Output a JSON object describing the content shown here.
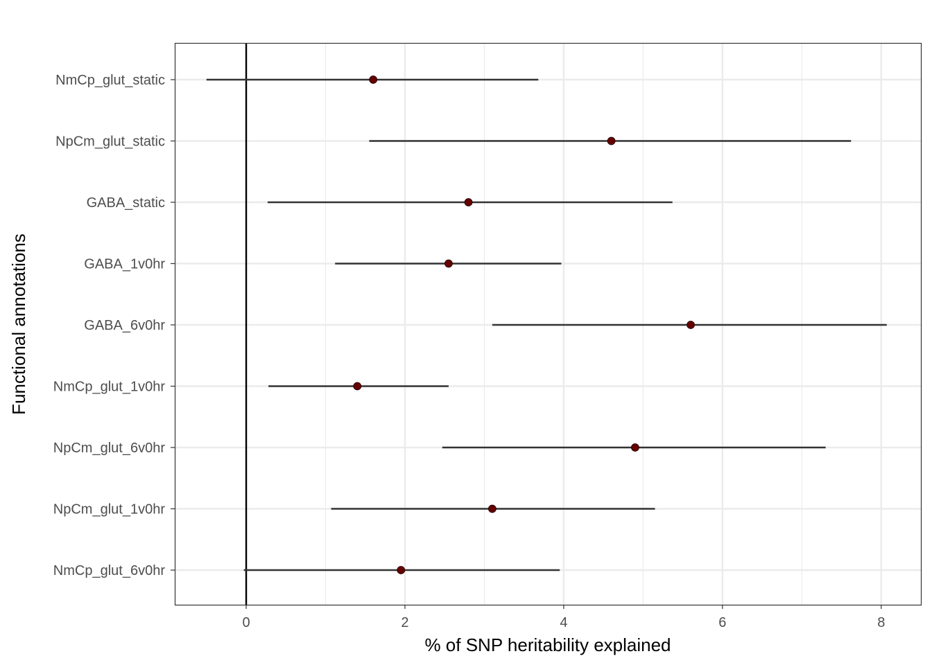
{
  "chart_data": {
    "type": "scatter",
    "subtype": "forest-plot",
    "title": "",
    "xlabel": "% of SNP heritability explained",
    "ylabel": "Functional annotations",
    "xlim": [
      -0.9,
      8.5
    ],
    "x_ticks": [
      0,
      2,
      4,
      6,
      8
    ],
    "x_tick_labels": [
      "0",
      "2",
      "4",
      "6",
      "8"
    ],
    "reference_line_x": 0,
    "grid": true,
    "legend": "none",
    "point_color": "#660000",
    "errorbar_color": "#333333",
    "categories": [
      "NmCp_glut_static",
      "NpCm_glut_static",
      "GABA_static",
      "GABA_1v0hr",
      "GABA_6v0hr",
      "NmCp_glut_1v0hr",
      "NpCm_glut_6v0hr",
      "NpCm_glut_1v0hr",
      "NmCp_glut_6v0hr"
    ],
    "values": [
      1.6,
      4.6,
      2.8,
      2.55,
      5.6,
      1.4,
      4.9,
      3.1,
      1.95
    ],
    "lower": [
      -0.5,
      1.55,
      0.27,
      1.12,
      3.1,
      0.28,
      2.47,
      1.07,
      -0.03
    ],
    "upper": [
      3.68,
      7.62,
      5.37,
      3.97,
      8.07,
      2.55,
      7.3,
      5.15,
      3.95
    ]
  }
}
